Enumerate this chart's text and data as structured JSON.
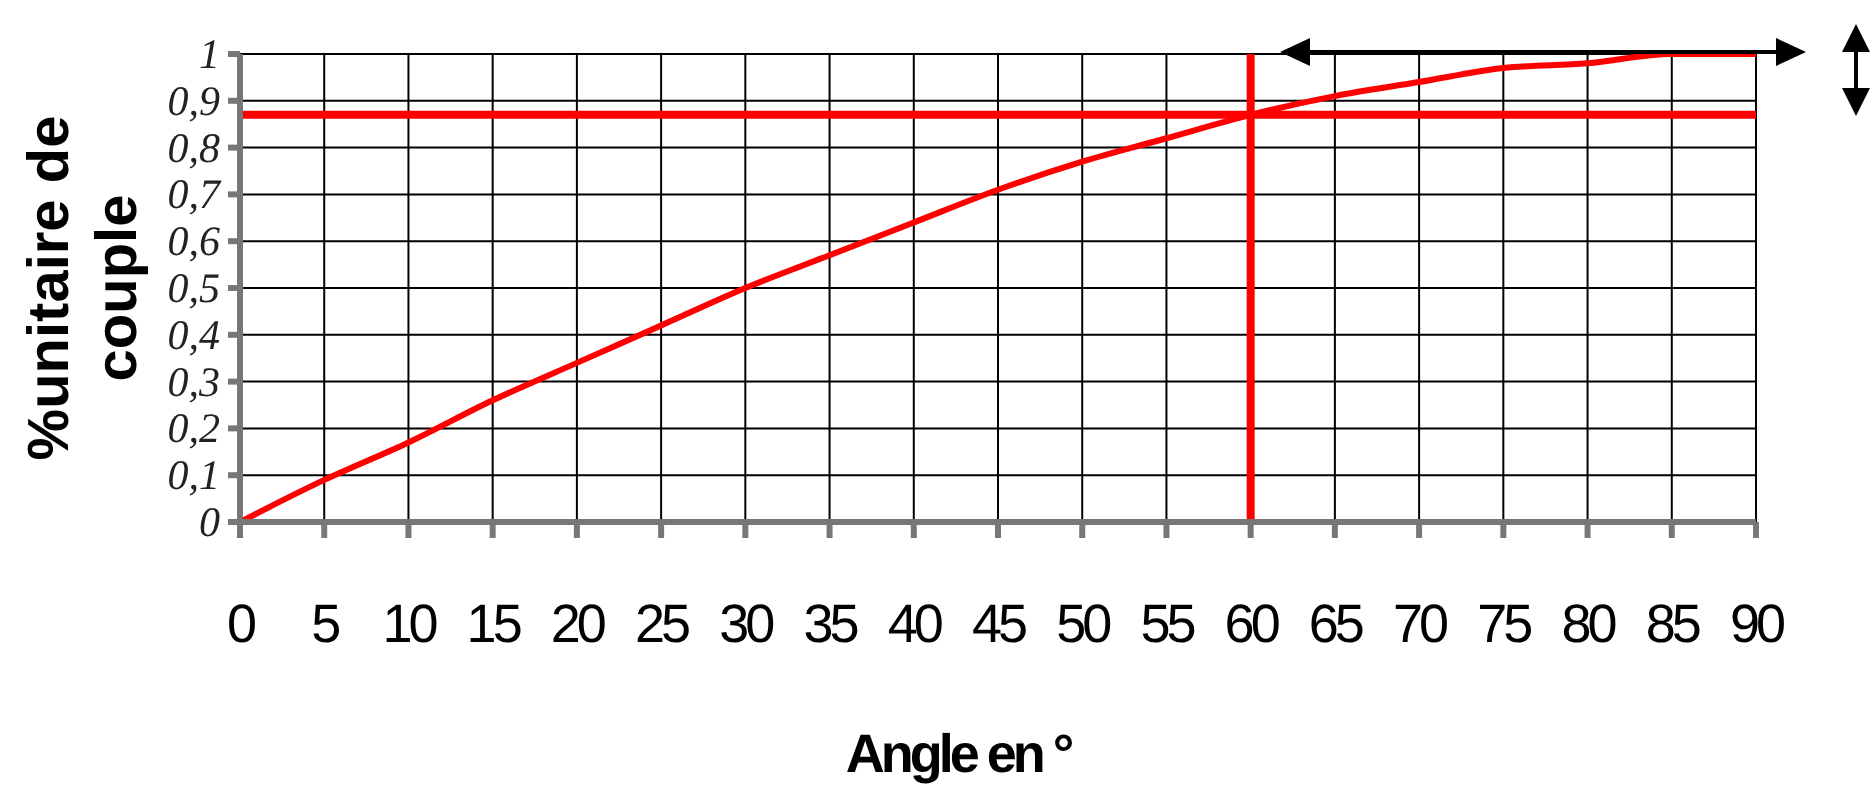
{
  "chart_data": {
    "type": "line",
    "xlabel": "Angle en °",
    "ylabel": "%unitaire de couple",
    "x": [
      0,
      5,
      10,
      15,
      20,
      25,
      30,
      35,
      40,
      45,
      50,
      55,
      60,
      65,
      70,
      75,
      80,
      85,
      90
    ],
    "series": [
      {
        "color": "#ff0000",
        "values": [
          0,
          0.09,
          0.17,
          0.26,
          0.34,
          0.42,
          0.5,
          0.57,
          0.64,
          0.71,
          0.77,
          0.82,
          0.87,
          0.91,
          0.94,
          0.97,
          0.98,
          1,
          1
        ]
      }
    ],
    "xlim": [
      0,
      90
    ],
    "xticks": [
      0,
      5,
      10,
      15,
      20,
      25,
      30,
      35,
      40,
      45,
      50,
      55,
      60,
      65,
      70,
      75,
      80,
      85,
      90
    ],
    "ylim": [
      0,
      1
    ],
    "yticks": [
      0,
      {
        "value": 0.1,
        "label": "0,1"
      },
      {
        "value": 0.2,
        "label": "0,2"
      },
      {
        "value": 0.3,
        "label": "0,3"
      },
      {
        "value": 0.4,
        "label": "0,4"
      },
      {
        "value": 0.5,
        "label": "0,5"
      },
      {
        "value": 0.6,
        "label": "0,6"
      },
      {
        "value": 0.7,
        "label": "0,7"
      },
      {
        "value": 0.8,
        "label": "0,8"
      },
      {
        "value": 0.9,
        "label": "0,9"
      },
      1
    ],
    "ref_lines": [
      {
        "axis": "x",
        "value": 60,
        "color": "#ff0000"
      },
      {
        "axis": "y",
        "value": 0.87,
        "color": "#ff0000"
      }
    ],
    "grid": true,
    "marker": "none",
    "line_style": "solid",
    "legend": false
  }
}
